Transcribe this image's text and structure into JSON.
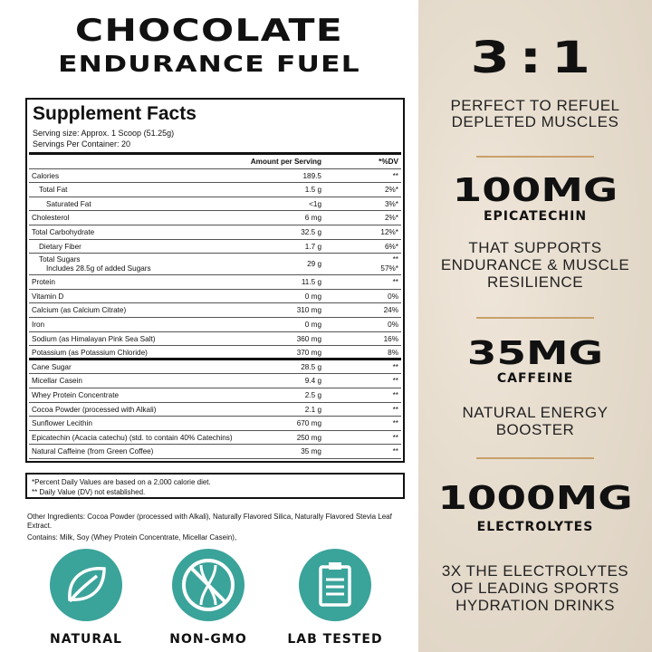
{
  "header": {
    "line1": "CHOCOLATE",
    "line2": "ENDURANCE FUEL"
  },
  "facts": {
    "title": "Supplement Facts",
    "serving_size": "Serving size: Approx. 1 Scoop (51.25g)",
    "servings_per_container": "Servings Per Container: 20",
    "col_amount": "Amount per Serving",
    "col_dv": "*%DV",
    "rows": [
      {
        "name": "Calories",
        "amount": "189.5",
        "dv": "**"
      },
      {
        "name": "Total Fat",
        "amount": "1.5 g",
        "dv": "2%*"
      },
      {
        "name": "Saturated Fat",
        "amount": "<1g",
        "dv": "3%*"
      },
      {
        "name": "Cholesterol",
        "amount": "6 mg",
        "dv": "2%*"
      },
      {
        "name": "Total Carbohydrate",
        "amount": "32.5 g",
        "dv": "12%*"
      },
      {
        "name": "Dietary Fiber",
        "amount": "1.7 g",
        "dv": "6%*"
      },
      {
        "name": "Total Sugars",
        "sub": "Includes 28.5g of added Sugars",
        "amount": "29 g",
        "dv": "**",
        "dv2": "57%*"
      },
      {
        "name": "Protein",
        "amount": "11.5 g",
        "dv": "**"
      },
      {
        "name": "Vitamin D",
        "amount": "0 mg",
        "dv": "0%"
      },
      {
        "name": "Calcium (as Calcium Citrate)",
        "amount": "310 mg",
        "dv": "24%"
      },
      {
        "name": "Iron",
        "amount": "0 mg",
        "dv": "0%"
      },
      {
        "name": "Sodium (as Himalayan Pink Sea Salt)",
        "amount": "360 mg",
        "dv": "16%"
      },
      {
        "name": "Potassium (as Potassium Chloride)",
        "amount": "370 mg",
        "dv": "8%"
      }
    ],
    "rows2": [
      {
        "name": "Cane Sugar",
        "amount": "28.5 g",
        "dv": "**"
      },
      {
        "name": "Micellar Casein",
        "amount": "9.4 g",
        "dv": "**"
      },
      {
        "name": "Whey Protein Concentrate",
        "amount": "2.5 g",
        "dv": "**"
      },
      {
        "name": "Cocoa Powder (processed with Alkali)",
        "amount": "2.1 g",
        "dv": "**"
      },
      {
        "name": "Sunflower Lecithin",
        "amount": "670 mg",
        "dv": "**"
      },
      {
        "name": "Epicatechin (Acacia catechu) (std. to contain 40% Catechins)",
        "amount": "250 mg",
        "dv": "**"
      },
      {
        "name": "Natural Caffeine (from Green Coffee)",
        "amount": "35 mg",
        "dv": "**"
      }
    ],
    "footnote1": "*Percent Daily Values are based on a 2,000 calorie diet.",
    "footnote2": "** Daily Value (DV) not established."
  },
  "other_ingredients": "Other Ingredients: Cocoa Powder (processed with Alkali), Naturally Flavored Silica, Naturally Flavored Stevia Leaf Extract.",
  "contains": "Contains: Milk, Soy (Whey Protein Concentrate, Micellar Casein),",
  "badges": [
    {
      "label": "NATURAL",
      "icon": "leaf-icon"
    },
    {
      "label": "NON-GMO",
      "icon": "no-dna-icon"
    },
    {
      "label": "LAB TESTED",
      "icon": "clipboard-icon"
    }
  ],
  "colors": {
    "teal": "#3aa39a",
    "gold": "#c9a06a"
  },
  "claims": {
    "ratio": "3:1",
    "ratio_text1": "PERFECT TO REFUEL",
    "ratio_text2": "DEPLETED MUSCLES",
    "epi": "100MG",
    "epi_sub": "EPICATECHIN",
    "epi_text1": "THAT SUPPORTS",
    "epi_text2": "ENDURANCE & MUSCLE",
    "epi_text3": "RESILIENCE",
    "caf": "35MG",
    "caf_sub": "CAFFEINE",
    "caf_text1": "NATURAL ENERGY",
    "caf_text2": "BOOSTER",
    "ele": "1000MG",
    "ele_sub": "ELECTROLYTES",
    "ele_text1": "3X THE ELECTROLYTES",
    "ele_text2": "OF LEADING SPORTS",
    "ele_text3": "HYDRATION DRINKS"
  }
}
